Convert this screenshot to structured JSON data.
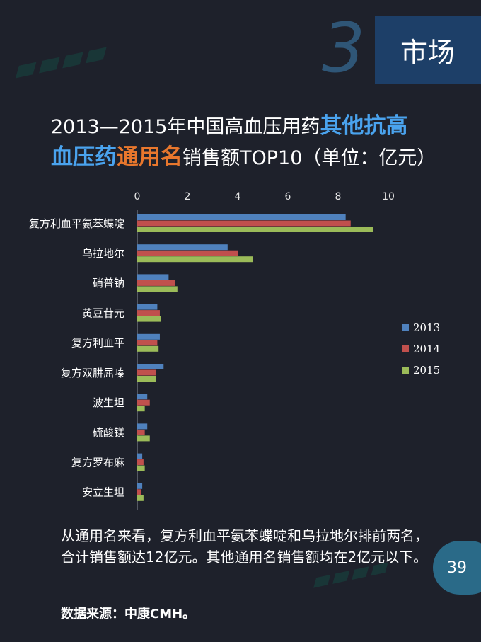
{
  "section": {
    "number": "3",
    "label": "市场"
  },
  "title": {
    "part1": "2013—2015年中国高血压用药",
    "part2": "其他抗高",
    "part3": "血压药",
    "part4": "通用名",
    "part5": "销售额TOP10（单位：亿元）"
  },
  "colors": {
    "s2013": "#4f81bd",
    "s2014": "#c0504d",
    "s2015": "#9bbb59",
    "bg": "#1e212b"
  },
  "chart_data": {
    "type": "bar",
    "orientation": "horizontal",
    "categories": [
      "复方利血平氨苯蝶啶",
      "乌拉地尔",
      "硝普钠",
      "黄豆苷元",
      "复方利血平",
      "复方双肼屈嗪",
      "波生坦",
      "硫酸镁",
      "复方罗布麻",
      "安立生坦"
    ],
    "series": [
      {
        "name": "2013",
        "values": [
          8.3,
          3.6,
          1.25,
          0.8,
          0.9,
          1.05,
          0.4,
          0.4,
          0.2,
          0.2
        ]
      },
      {
        "name": "2014",
        "values": [
          8.5,
          4.0,
          1.5,
          0.9,
          0.8,
          0.75,
          0.5,
          0.3,
          0.25,
          0.15
        ]
      },
      {
        "name": "2015",
        "values": [
          9.4,
          4.6,
          1.6,
          0.95,
          0.85,
          0.75,
          0.3,
          0.5,
          0.3,
          0.25
        ]
      }
    ],
    "xticks": [
      "0",
      "2",
      "4",
      "6",
      "8",
      "10"
    ],
    "xlim": [
      0,
      10
    ],
    "legend_position": "right"
  },
  "summary": "从通用名来看，复方利血平氨苯蝶啶和乌拉地尔排前两名，合计销售额达12亿元。其他通用名销售额均在2亿元以下。",
  "source": "数据来源：中康CMH。",
  "page_number": "39"
}
